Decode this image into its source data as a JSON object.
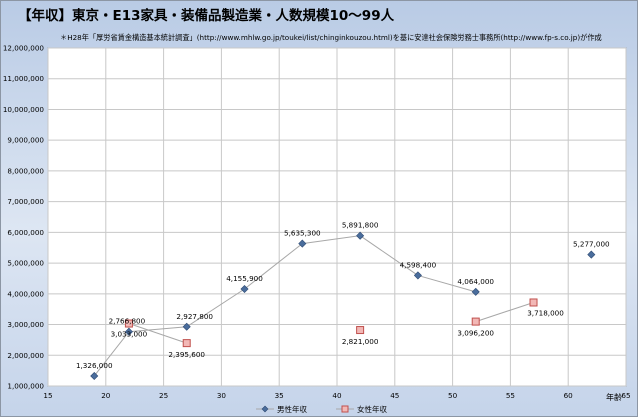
{
  "chart_data": {
    "type": "scatter",
    "title": "【年収】東京・E13家具・装備品製造業・人数規模10～99人",
    "subtitle": "＊H28年「厚労省賃金構造基本統計調査」(http://www.mhlw.go.jp/toukei/list/chinginkouzou.html)を基に安達社会保険労務士事務所(http://www.fp-s.co.jp)が作成",
    "xlabel": "年齢",
    "ylabel": "",
    "xlim": [
      15,
      65
    ],
    "ylim": [
      1000000,
      12000000
    ],
    "x_ticks": [
      15,
      20,
      25,
      30,
      35,
      40,
      45,
      50,
      55,
      60,
      65
    ],
    "y_ticks": [
      1000000,
      2000000,
      3000000,
      4000000,
      5000000,
      6000000,
      7000000,
      8000000,
      9000000,
      10000000,
      11000000,
      12000000
    ],
    "x_tick_labels": [
      "15",
      "20",
      "25",
      "30",
      "35",
      "40",
      "45",
      "50",
      "55",
      "60",
      "65"
    ],
    "y_tick_labels": [
      "1,000,000",
      "2,000,000",
      "3,000,000",
      "4,000,000",
      "5,000,000",
      "6,000,000",
      "7,000,000",
      "8,000,000",
      "9,000,000",
      "10,000,000",
      "11,000,000",
      "12,000,000"
    ],
    "grid": true,
    "legend_position": "bottom",
    "series": [
      {
        "name": "男性年収",
        "color": "#4a6d9c",
        "marker": "diamond",
        "points": [
          {
            "x": 19,
            "y": 1326000,
            "label": "1,326,000"
          },
          {
            "x": 22,
            "y": 2766800,
            "label": "2,766,800"
          },
          {
            "x": 27,
            "y": 2927800,
            "label": "2,927,800"
          },
          {
            "x": 32,
            "y": 4155900,
            "label": "4,155,900"
          },
          {
            "x": 37,
            "y": 5635300,
            "label": "5,635,300"
          },
          {
            "x": 42,
            "y": 5891800,
            "label": "5,891,800"
          },
          {
            "x": 47,
            "y": 4598400,
            "label": "4,598,400"
          },
          {
            "x": 52,
            "y": 4064000,
            "label": "4,064,000"
          },
          {
            "x": 62,
            "y": 5277000,
            "label": "5,277,000"
          }
        ],
        "connected_segments": [
          [
            0,
            7
          ]
        ]
      },
      {
        "name": "女性年収",
        "color": "#c0504d",
        "marker": "square",
        "points": [
          {
            "x": 22,
            "y": 3033000,
            "label": "3,033,000"
          },
          {
            "x": 27,
            "y": 2395600,
            "label": "2,395,600"
          },
          {
            "x": 42,
            "y": 2821000,
            "label": "2,821,000"
          },
          {
            "x": 52,
            "y": 3096200,
            "label": "3,096,200"
          },
          {
            "x": 57,
            "y": 3718000,
            "label": "3,718,000"
          }
        ],
        "connected_segments": [
          [
            0,
            1
          ],
          [
            3,
            4
          ]
        ]
      }
    ]
  }
}
